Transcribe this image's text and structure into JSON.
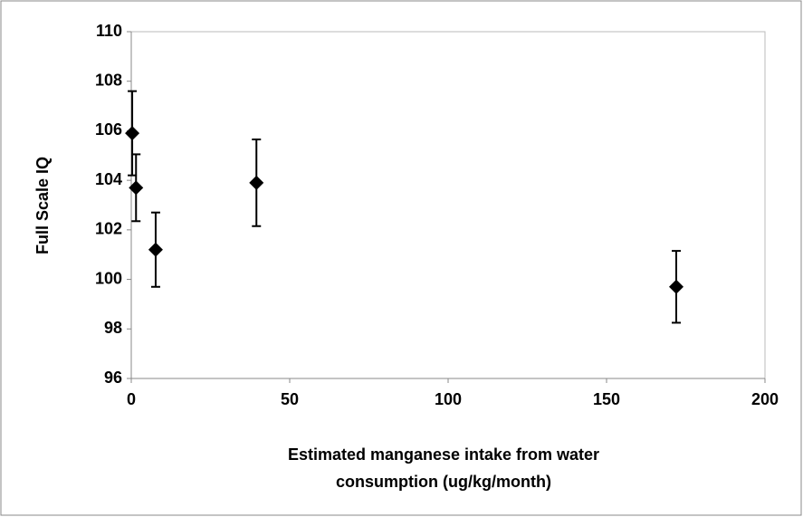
{
  "chart_data": {
    "type": "scatter",
    "ylabel": "Full Scale IQ",
    "xlabel": [
      "Estimated manganese intake from water",
      "consumption (ug/kg/month)"
    ],
    "x": [
      0.3,
      1.5,
      7.7,
      39.5,
      172
    ],
    "values": [
      105.9,
      103.7,
      101.2,
      103.9,
      99.7
    ],
    "errors": [
      1.7,
      1.35,
      1.5,
      1.75,
      1.45
    ],
    "color": "#000000",
    "xlim": [
      0,
      200
    ],
    "xticks": [
      0,
      50,
      100,
      150,
      200
    ],
    "ylim": [
      96,
      110
    ],
    "yticks": [
      96,
      98,
      100,
      102,
      104,
      106,
      108,
      110
    ],
    "grid": false
  }
}
